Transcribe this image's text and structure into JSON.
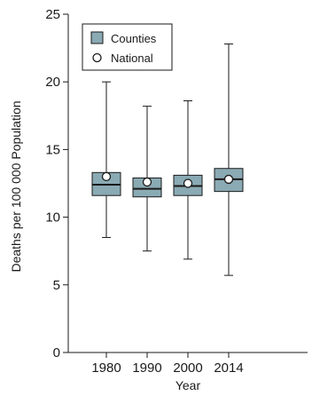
{
  "chart_data": {
    "type": "box",
    "xlabel": "Year",
    "ylabel": "Deaths per 100 000 Population",
    "ylim": [
      0,
      25
    ],
    "yticks": [
      0,
      5,
      10,
      15,
      20,
      25
    ],
    "categories": [
      "1980",
      "1990",
      "2000",
      "2014"
    ],
    "series": [
      {
        "name": "Counties",
        "boxes": [
          {
            "min": 8.5,
            "q1": 11.6,
            "median": 12.4,
            "q3": 13.3,
            "max": 20.0
          },
          {
            "min": 7.5,
            "q1": 11.5,
            "median": 12.1,
            "q3": 12.9,
            "max": 18.2
          },
          {
            "min": 6.9,
            "q1": 11.6,
            "median": 12.3,
            "q3": 13.1,
            "max": 18.6
          },
          {
            "min": 5.7,
            "q1": 11.9,
            "median": 12.8,
            "q3": 13.6,
            "max": 22.8
          }
        ]
      },
      {
        "name": "National",
        "values": [
          13.0,
          12.6,
          12.5,
          12.8
        ]
      }
    ],
    "legend": {
      "position": "top-left",
      "entries": [
        "Counties",
        "National"
      ]
    },
    "grid": false,
    "colors": {
      "box_fill": "#8aaab4",
      "box_stroke": "#1a1a1a",
      "national_marker": "#ffffff",
      "axis": "#1a1a1a"
    }
  }
}
